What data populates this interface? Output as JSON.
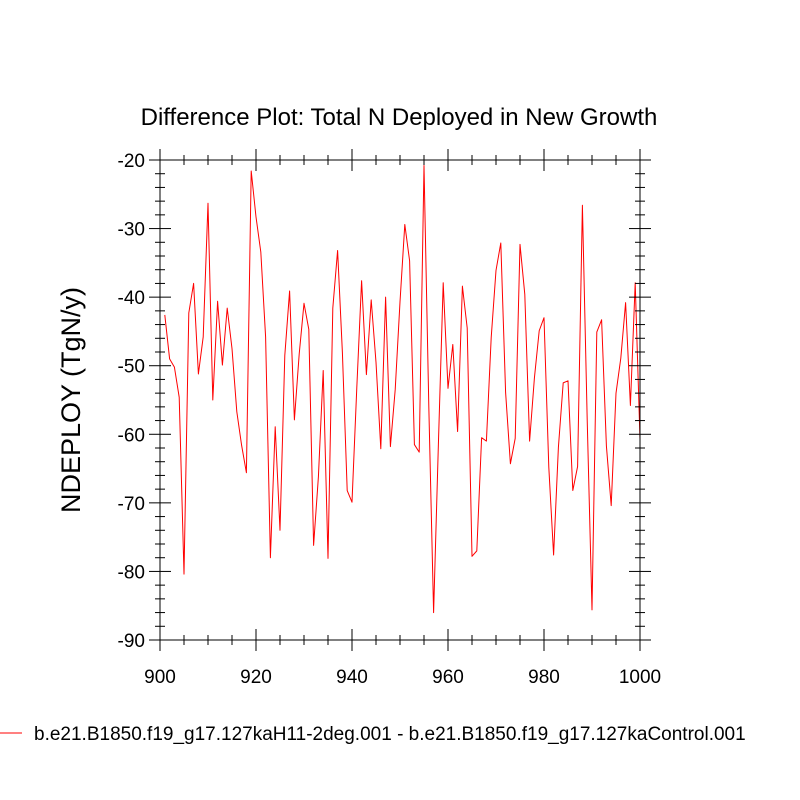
{
  "chart_data": {
    "type": "line",
    "title": "Difference Plot: Total N Deployed in New Growth",
    "xlabel": "",
    "ylabel": "NDEPLOY  (TgN/y)",
    "xlim": [
      900,
      1000
    ],
    "ylim": [
      -90,
      -20
    ],
    "xticks": [
      900,
      920,
      940,
      960,
      980,
      1000
    ],
    "yticks": [
      -90,
      -80,
      -70,
      -60,
      -50,
      -40,
      -30,
      -20
    ],
    "xtick_labels": [
      "900",
      "920",
      "940",
      "960",
      "980",
      "1000"
    ],
    "ytick_labels": [
      "-90",
      "-80",
      "-70",
      "-60",
      "-50",
      "-40",
      "-30",
      "-20"
    ],
    "x_minor_step": 5,
    "y_minor_step": 2,
    "grid": false,
    "legend_position": "bottom",
    "series": [
      {
        "name": "b.e21.B1850.f19_g17.127kaH11-2deg.001 - b.e21.B1850.f19_g17.127kaControl.001",
        "color": "#ff0000",
        "x": [
          901,
          902,
          903,
          904,
          905,
          906,
          907,
          908,
          909,
          910,
          911,
          912,
          913,
          914,
          915,
          916,
          917,
          918,
          919,
          920,
          921,
          922,
          923,
          924,
          925,
          926,
          927,
          928,
          929,
          930,
          931,
          932,
          933,
          934,
          935,
          936,
          937,
          938,
          939,
          940,
          941,
          942,
          943,
          944,
          945,
          946,
          947,
          948,
          949,
          950,
          951,
          952,
          953,
          954,
          955,
          956,
          957,
          958,
          959,
          960,
          961,
          962,
          963,
          964,
          965,
          966,
          967,
          968,
          969,
          970,
          971,
          972,
          973,
          974,
          975,
          976,
          977,
          978,
          979,
          980,
          981,
          982,
          983,
          984,
          985,
          986,
          987,
          988,
          989,
          990,
          991,
          992,
          993,
          994,
          995,
          996,
          997,
          998,
          999,
          1000
        ],
        "values": [
          -42.6,
          -49.0,
          -50.2,
          -54.6,
          -80.4,
          -42.3,
          -38.0,
          -51.2,
          -45.8,
          -26.3,
          -55.0,
          -40.6,
          -49.9,
          -41.6,
          -47.5,
          -56.7,
          -61.6,
          -65.6,
          -21.6,
          -28.3,
          -33.4,
          -45.8,
          -78.0,
          -58.9,
          -74.0,
          -48.5,
          -39.1,
          -57.9,
          -48.3,
          -40.9,
          -44.7,
          -76.2,
          -66.2,
          -50.7,
          -78.1,
          -41.6,
          -33.2,
          -48.1,
          -68.2,
          -69.9,
          -53.2,
          -37.6,
          -51.3,
          -40.4,
          -49.5,
          -62.1,
          -40.0,
          -61.8,
          -53.5,
          -40.7,
          -29.4,
          -34.7,
          -61.5,
          -62.6,
          -20.8,
          -55.9,
          -86.0,
          -61.4,
          -37.9,
          -53.3,
          -46.9,
          -59.6,
          -38.4,
          -44.5,
          -77.8,
          -77.0,
          -60.5,
          -61.0,
          -45.9,
          -36.1,
          -32.1,
          -53.9,
          -64.3,
          -60.6,
          -32.3,
          -39.6,
          -61.0,
          -51.8,
          -44.9,
          -43.0,
          -64.8,
          -77.6,
          -61.9,
          -52.5,
          -52.2,
          -68.2,
          -64.7,
          -26.6,
          -57.9,
          -85.6,
          -45.1,
          -43.3,
          -61.7,
          -70.4,
          -54.0,
          -48.9,
          -40.8,
          -55.8,
          -37.9,
          -60.8
        ]
      }
    ]
  }
}
